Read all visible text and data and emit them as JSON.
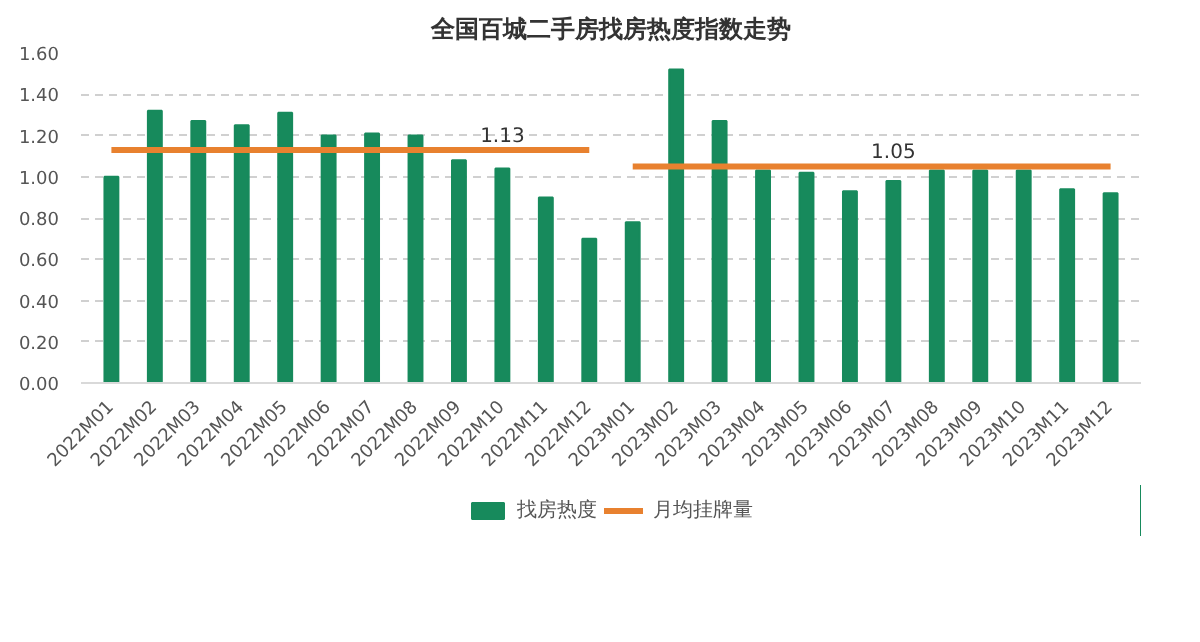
{
  "chart_data": {
    "type": "bar",
    "title": "全国百城二手房找房热度指数走势",
    "categories": [
      "2022M01",
      "2022M02",
      "2022M03",
      "2022M04",
      "2022M05",
      "2022M06",
      "2022M07",
      "2022M08",
      "2022M09",
      "2022M10",
      "2022M11",
      "2022M12",
      "2023M01",
      "2023M02",
      "2023M03",
      "2023M04",
      "2023M05",
      "2023M06",
      "2023M07",
      "2023M08",
      "2023M09",
      "2023M10",
      "2023M11",
      "2023M12"
    ],
    "series": [
      {
        "name": "找房热度",
        "color": "#178a5c",
        "values": [
          1.0,
          1.32,
          1.27,
          1.25,
          1.31,
          1.2,
          1.21,
          1.2,
          1.08,
          1.04,
          0.9,
          0.7,
          0.78,
          1.52,
          1.27,
          1.03,
          1.02,
          0.93,
          0.98,
          1.03,
          1.03,
          1.03,
          0.94,
          0.92
        ]
      },
      {
        "name": "月均挂牌量",
        "type": "line",
        "color": "#e8812f",
        "values": [
          1.13,
          1.13,
          1.13,
          1.13,
          1.13,
          1.13,
          1.13,
          1.13,
          1.13,
          1.13,
          1.13,
          1.13,
          1.05,
          1.05,
          1.05,
          1.05,
          1.05,
          1.05,
          1.05,
          1.05,
          1.05,
          1.05,
          1.05,
          1.05
        ],
        "value_labels": [
          null,
          null,
          null,
          null,
          null,
          null,
          null,
          null,
          null,
          "1.13",
          null,
          null,
          null,
          null,
          null,
          null,
          null,
          null,
          "1.05",
          null,
          null,
          null,
          null,
          null
        ]
      }
    ],
    "ylim": [
      0,
      1.6
    ],
    "yticks": [
      {
        "value": 0,
        "label": "0.00"
      },
      {
        "value": 0.2,
        "label": "0.20"
      },
      {
        "value": 0.4,
        "label": "0.40"
      },
      {
        "value": 0.6,
        "label": "0.60"
      },
      {
        "value": 0.8,
        "label": "0.80"
      },
      {
        "value": 1.0,
        "label": "1.00"
      },
      {
        "value": 1.2,
        "label": "1.20"
      },
      {
        "value": 1.4,
        "label": "1.40"
      },
      {
        "value": 1.6,
        "label": "1.60"
      }
    ],
    "grid": "y",
    "legend": "bottom"
  }
}
